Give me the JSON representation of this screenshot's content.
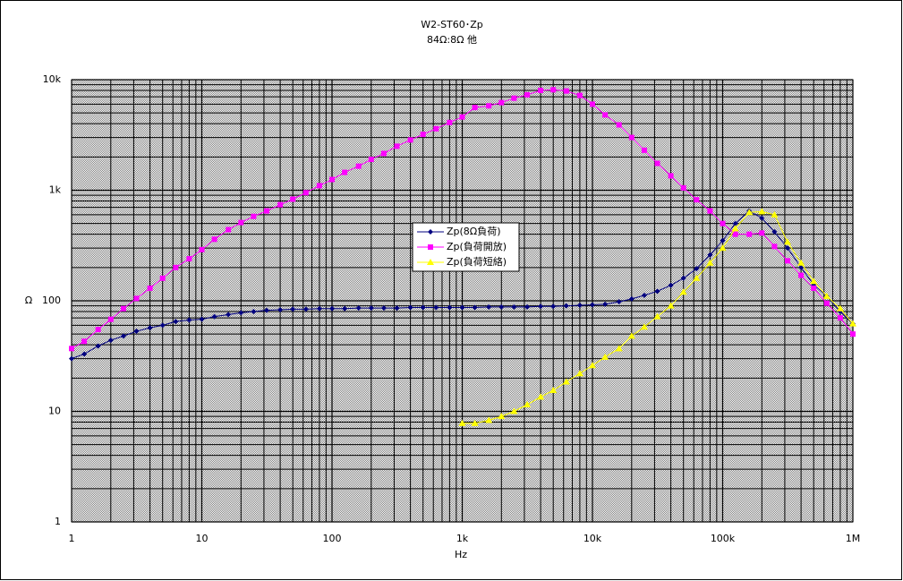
{
  "chart_data": {
    "type": "line",
    "title": "W2-ST60･Zp",
    "subtitle": "84Ω:8Ω 他",
    "x_label": "Hz",
    "y_label": "Ω",
    "log_x": true,
    "log_y": true,
    "grid": true,
    "minor_grid": true,
    "legend": "center",
    "xlim": [
      1,
      1000000
    ],
    "ylim": [
      1,
      10000
    ],
    "xticks": [
      1,
      10,
      100,
      {
        "value": 1000,
        "label": "1k"
      },
      {
        "value": 10000,
        "label": "10k"
      },
      {
        "value": 100000,
        "label": "100k"
      },
      {
        "value": 1000000,
        "label": "1M"
      }
    ],
    "yticks": [
      1,
      10,
      100,
      {
        "value": 1000,
        "label": "1k"
      },
      {
        "value": 10000,
        "label": "10k"
      }
    ],
    "x": [
      1,
      1.25,
      1.6,
      2,
      2.5,
      3.15,
      4,
      5,
      6.3,
      8,
      10,
      12.5,
      16,
      20,
      25,
      31.5,
      40,
      50,
      63,
      80,
      100,
      125,
      160,
      200,
      250,
      315,
      400,
      500,
      630,
      800,
      1000,
      1250,
      1600,
      2000,
      2500,
      3150,
      4000,
      5000,
      6300,
      8000,
      10000,
      12500,
      16000,
      20000,
      25000,
      31500,
      40000,
      50000,
      63000,
      80000,
      100000,
      125000,
      160000,
      200000,
      250000,
      315000,
      400000,
      500000,
      630000,
      800000,
      1000000
    ],
    "series": [
      {
        "name": "Zp(8Ω負荷)",
        "color": "#000080",
        "marker": "diamond",
        "values": [
          30,
          33,
          39,
          44,
          48,
          53,
          57,
          60,
          65,
          67,
          68,
          72,
          75,
          78,
          80,
          82,
          83,
          84,
          84,
          85,
          85,
          85,
          86,
          86,
          86,
          86,
          87,
          87,
          87,
          87,
          87,
          87,
          88,
          88,
          88,
          88,
          89,
          89,
          90,
          91,
          92,
          93,
          98,
          104,
          112,
          122,
          138,
          160,
          195,
          260,
          350,
          500,
          650,
          560,
          420,
          300,
          200,
          140,
          110,
          80,
          62
        ]
      },
      {
        "name": "Zp(負荷開放)",
        "color": "#ff00ff",
        "marker": "square",
        "values": [
          37,
          43,
          55,
          68,
          85,
          105,
          130,
          160,
          200,
          240,
          290,
          360,
          440,
          510,
          580,
          650,
          740,
          830,
          950,
          1100,
          1250,
          1450,
          1650,
          1900,
          2150,
          2500,
          2850,
          3200,
          3600,
          4100,
          4600,
          5600,
          5800,
          6200,
          6800,
          7300,
          8000,
          8100,
          7900,
          7200,
          6000,
          4800,
          3900,
          3000,
          2300,
          1750,
          1350,
          1050,
          820,
          650,
          500,
          400,
          400,
          410,
          310,
          230,
          170,
          130,
          95,
          70,
          50
        ]
      },
      {
        "name": "Zp(負荷短絡)",
        "color": "#ffff00",
        "marker": "triangle",
        "values": [
          null,
          null,
          null,
          null,
          null,
          null,
          null,
          null,
          null,
          null,
          null,
          null,
          null,
          null,
          null,
          null,
          null,
          null,
          null,
          null,
          null,
          null,
          null,
          null,
          null,
          null,
          null,
          null,
          null,
          null,
          7.8,
          7.8,
          8.3,
          9,
          10,
          11.5,
          13.5,
          15.5,
          18.5,
          22,
          26,
          31,
          37,
          48,
          58,
          72,
          90,
          120,
          160,
          220,
          300,
          450,
          630,
          640,
          600,
          340,
          220,
          150,
          110,
          85,
          62
        ]
      }
    ]
  }
}
